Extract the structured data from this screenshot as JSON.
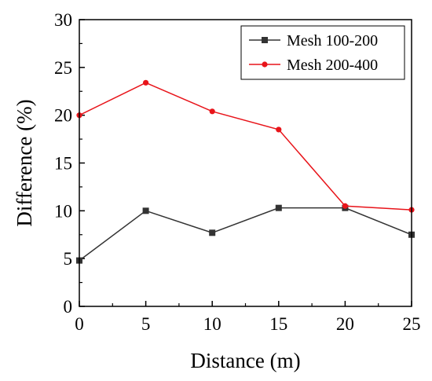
{
  "chart_data": {
    "type": "line",
    "title": "",
    "xlabel": "Distance (m)",
    "ylabel": "Difference (%)",
    "xlim": [
      0,
      25
    ],
    "ylim": [
      0,
      30
    ],
    "xticks": [
      0,
      5,
      10,
      15,
      20,
      25
    ],
    "yticks": [
      0,
      5,
      10,
      15,
      20,
      25,
      30
    ],
    "x_tick_labels": [
      "0",
      "5",
      "10",
      "15",
      "20",
      "25"
    ],
    "y_tick_labels": [
      "0",
      "5",
      "10",
      "15",
      "20",
      "25",
      "30"
    ],
    "grid": false,
    "legend_position": "top-right",
    "x": [
      0,
      5,
      10,
      15,
      20,
      25
    ],
    "series": [
      {
        "name": "Mesh 100-200",
        "values": [
          4.8,
          10.0,
          7.7,
          10.3,
          10.3,
          7.5
        ],
        "color": "#333333",
        "marker": "square"
      },
      {
        "name": "Mesh 200-400",
        "values": [
          20.0,
          23.4,
          20.4,
          18.5,
          10.5,
          10.1
        ],
        "color": "#e8141a",
        "marker": "circle"
      }
    ]
  }
}
